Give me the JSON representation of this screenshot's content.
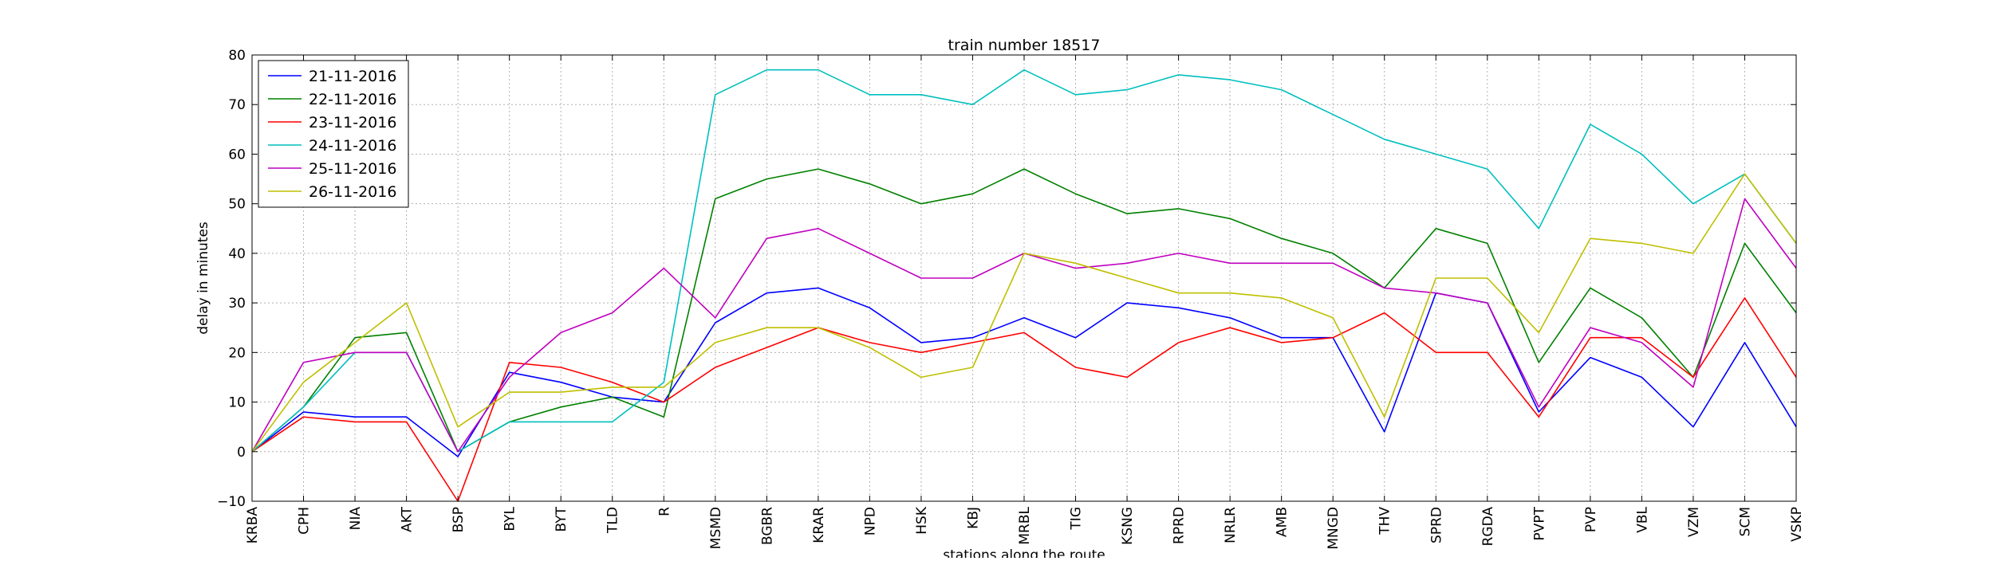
{
  "chart_data": {
    "type": "line",
    "title": "train number 18517",
    "xlabel": "stations along the route",
    "ylabel": "delay in minutes",
    "ylim": [
      -10,
      80
    ],
    "yticks": [
      -10,
      0,
      10,
      20,
      30,
      40,
      50,
      60,
      70,
      80
    ],
    "grid": true,
    "legend_position": "top-left",
    "categories": [
      "KRBA",
      "CPH",
      "NIA",
      "AKT",
      "BSP",
      "BYL",
      "BYT",
      "TLD",
      "R",
      "MSMD",
      "BGBR",
      "KRAR",
      "NPD",
      "HSK",
      "KBJ",
      "MRBL",
      "TIG",
      "KSNG",
      "RPRD",
      "NRLR",
      "AMB",
      "MNGD",
      "THV",
      "SPRD",
      "RGDA",
      "PVPT",
      "PVP",
      "VBL",
      "VZM",
      "SCM",
      "VSKP"
    ],
    "series": [
      {
        "name": "21-11-2016",
        "color": "#0000ff",
        "values": [
          0,
          8,
          7,
          7,
          -1,
          16,
          14,
          11,
          10,
          26,
          32,
          33,
          29,
          22,
          23,
          27,
          23,
          30,
          29,
          27,
          23,
          23,
          4,
          32,
          30,
          8,
          19,
          15,
          5,
          22,
          5
        ]
      },
      {
        "name": "22-11-2016",
        "color": "#008000",
        "values": [
          0,
          9,
          23,
          24,
          0,
          6,
          9,
          11,
          7,
          51,
          55,
          57,
          54,
          50,
          52,
          57,
          52,
          48,
          49,
          47,
          43,
          40,
          33,
          45,
          42,
          18,
          33,
          27,
          15,
          42,
          28
        ]
      },
      {
        "name": "23-11-2016",
        "color": "#ff0000",
        "values": [
          0,
          7,
          6,
          6,
          -10,
          18,
          17,
          14,
          10,
          17,
          21,
          25,
          22,
          20,
          22,
          24,
          17,
          15,
          22,
          25,
          22,
          23,
          28,
          20,
          20,
          7,
          23,
          23,
          15,
          31,
          15
        ]
      },
      {
        "name": "24-11-2016",
        "color": "#00bfbf",
        "values": [
          0,
          9,
          20,
          20,
          0,
          6,
          6,
          6,
          14,
          72,
          77,
          77,
          72,
          72,
          70,
          77,
          72,
          73,
          76,
          75,
          73,
          68,
          63,
          60,
          57,
          45,
          66,
          60,
          50,
          56,
          42
        ]
      },
      {
        "name": "25-11-2016",
        "color": "#bf00bf",
        "values": [
          0,
          18,
          20,
          20,
          0,
          15,
          24,
          28,
          37,
          27,
          43,
          45,
          40,
          35,
          35,
          40,
          37,
          38,
          40,
          38,
          38,
          38,
          33,
          32,
          30,
          9,
          25,
          22,
          13,
          51,
          37
        ]
      },
      {
        "name": "26-11-2016",
        "color": "#bfbf00",
        "values": [
          0,
          14,
          22,
          30,
          5,
          12,
          12,
          13,
          13,
          22,
          25,
          25,
          21,
          15,
          17,
          40,
          38,
          35,
          32,
          32,
          31,
          27,
          7,
          35,
          35,
          24,
          43,
          42,
          40,
          56,
          42
        ]
      }
    ]
  }
}
